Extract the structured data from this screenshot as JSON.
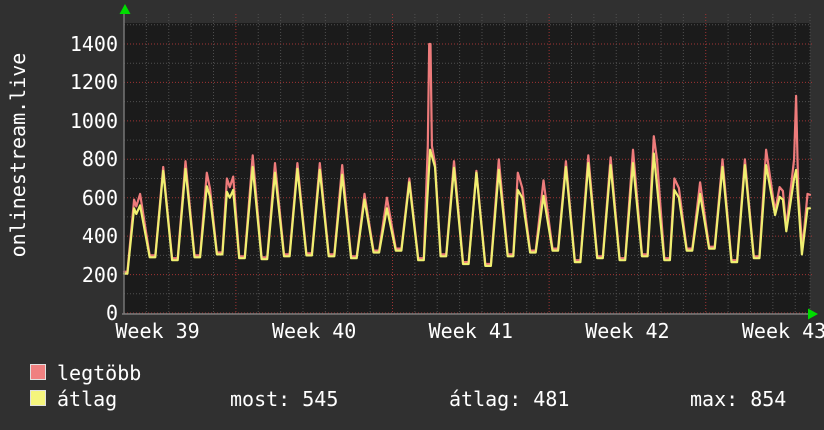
{
  "vertical_title": "onlinestream.live",
  "colors": {
    "outer_bg": "#303030",
    "plot_bg": "#1b1b1b",
    "grid_minor": "#4f4f4f",
    "grid_major": "#a03434",
    "axis": "#7a7a7a",
    "arrow": "#00dd00",
    "text": "#ffffff"
  },
  "chart_data": {
    "type": "line",
    "title": "onlinestream.live",
    "x_axis": {
      "unit": "days",
      "min": 0,
      "max": 30.66,
      "week_boundaries": [
        5,
        12,
        19,
        26
      ],
      "labels": [
        {
          "text": "Week 39",
          "day": 1.5
        },
        {
          "text": "Week 40",
          "day": 8.5
        },
        {
          "text": "Week 41",
          "day": 15.5
        },
        {
          "text": "Week 42",
          "day": 22.5
        },
        {
          "text": "Week 43",
          "day": 29.5
        }
      ]
    },
    "y_axis": {
      "min": 0,
      "max": 1509,
      "minor_step": 100,
      "major_step": 200,
      "ticks": [
        0,
        200,
        400,
        600,
        800,
        1000,
        1200,
        1400
      ]
    },
    "grid": {
      "on": true,
      "legend_position": "bottom-left"
    },
    "series": [
      {
        "name": "legtöbb",
        "color": "#ee7b7b",
        "points": [
          [
            0,
            215
          ],
          [
            0.15,
            215
          ],
          [
            0.45,
            590
          ],
          [
            0.55,
            555
          ],
          [
            0.72,
            620
          ],
          [
            1.15,
            300
          ],
          [
            1.4,
            300
          ],
          [
            1.75,
            760
          ],
          [
            2.15,
            285
          ],
          [
            2.4,
            285
          ],
          [
            2.75,
            790
          ],
          [
            3.15,
            300
          ],
          [
            3.4,
            300
          ],
          [
            3.7,
            730
          ],
          [
            3.85,
            645
          ],
          [
            4.15,
            315
          ],
          [
            4.4,
            315
          ],
          [
            4.6,
            700
          ],
          [
            4.73,
            655
          ],
          [
            4.88,
            710
          ],
          [
            5.15,
            295
          ],
          [
            5.4,
            295
          ],
          [
            5.75,
            820
          ],
          [
            6.15,
            290
          ],
          [
            6.4,
            290
          ],
          [
            6.75,
            780
          ],
          [
            7.15,
            305
          ],
          [
            7.4,
            305
          ],
          [
            7.75,
            780
          ],
          [
            8.15,
            310
          ],
          [
            8.4,
            310
          ],
          [
            8.75,
            780
          ],
          [
            9.15,
            305
          ],
          [
            9.4,
            305
          ],
          [
            9.75,
            770
          ],
          [
            10.15,
            295
          ],
          [
            10.4,
            295
          ],
          [
            10.75,
            620
          ],
          [
            11.15,
            325
          ],
          [
            11.4,
            325
          ],
          [
            11.75,
            600
          ],
          [
            12.15,
            335
          ],
          [
            12.4,
            335
          ],
          [
            12.75,
            700
          ],
          [
            13.15,
            285
          ],
          [
            13.4,
            285
          ],
          [
            13.58,
            870
          ],
          [
            13.64,
            1400
          ],
          [
            13.7,
            1400
          ],
          [
            13.76,
            870
          ],
          [
            13.9,
            780
          ],
          [
            14.15,
            305
          ],
          [
            14.4,
            305
          ],
          [
            14.75,
            790
          ],
          [
            15.15,
            265
          ],
          [
            15.4,
            265
          ],
          [
            15.75,
            740
          ],
          [
            16.15,
            255
          ],
          [
            16.4,
            255
          ],
          [
            16.75,
            800
          ],
          [
            17.15,
            305
          ],
          [
            17.4,
            305
          ],
          [
            17.6,
            730
          ],
          [
            17.8,
            650
          ],
          [
            18.15,
            325
          ],
          [
            18.4,
            325
          ],
          [
            18.75,
            690
          ],
          [
            19.15,
            335
          ],
          [
            19.4,
            335
          ],
          [
            19.75,
            790
          ],
          [
            20.15,
            275
          ],
          [
            20.4,
            275
          ],
          [
            20.75,
            820
          ],
          [
            21.15,
            295
          ],
          [
            21.4,
            295
          ],
          [
            21.75,
            810
          ],
          [
            22.15,
            285
          ],
          [
            22.4,
            285
          ],
          [
            22.75,
            850
          ],
          [
            23.15,
            305
          ],
          [
            23.4,
            305
          ],
          [
            23.68,
            920
          ],
          [
            23.82,
            800
          ],
          [
            24.15,
            285
          ],
          [
            24.4,
            285
          ],
          [
            24.6,
            700
          ],
          [
            24.8,
            650
          ],
          [
            25.15,
            335
          ],
          [
            25.4,
            335
          ],
          [
            25.75,
            680
          ],
          [
            26.15,
            345
          ],
          [
            26.4,
            345
          ],
          [
            26.75,
            800
          ],
          [
            27.15,
            275
          ],
          [
            27.4,
            275
          ],
          [
            27.75,
            800
          ],
          [
            28.15,
            295
          ],
          [
            28.4,
            295
          ],
          [
            28.7,
            850
          ],
          [
            29.1,
            530
          ],
          [
            29.3,
            655
          ],
          [
            29.45,
            635
          ],
          [
            29.6,
            445
          ],
          [
            29.95,
            800
          ],
          [
            30.04,
            1130
          ],
          [
            30.1,
            800
          ],
          [
            30.14,
            620
          ],
          [
            30.32,
            335
          ],
          [
            30.55,
            620
          ],
          [
            30.66,
            615
          ]
        ]
      },
      {
        "name": "átlag",
        "color": "#efef70",
        "points": [
          [
            0,
            205
          ],
          [
            0.15,
            205
          ],
          [
            0.45,
            545
          ],
          [
            0.55,
            515
          ],
          [
            0.72,
            560
          ],
          [
            1.15,
            290
          ],
          [
            1.4,
            290
          ],
          [
            1.75,
            740
          ],
          [
            2.15,
            275
          ],
          [
            2.4,
            275
          ],
          [
            2.75,
            750
          ],
          [
            3.15,
            290
          ],
          [
            3.4,
            290
          ],
          [
            3.7,
            660
          ],
          [
            3.85,
            605
          ],
          [
            4.15,
            305
          ],
          [
            4.4,
            305
          ],
          [
            4.6,
            630
          ],
          [
            4.73,
            600
          ],
          [
            4.88,
            640
          ],
          [
            5.15,
            285
          ],
          [
            5.4,
            285
          ],
          [
            5.75,
            760
          ],
          [
            6.15,
            280
          ],
          [
            6.4,
            280
          ],
          [
            6.75,
            730
          ],
          [
            7.15,
            295
          ],
          [
            7.4,
            295
          ],
          [
            7.75,
            750
          ],
          [
            8.15,
            300
          ],
          [
            8.4,
            300
          ],
          [
            8.75,
            745
          ],
          [
            9.15,
            295
          ],
          [
            9.4,
            295
          ],
          [
            9.75,
            720
          ],
          [
            10.15,
            285
          ],
          [
            10.4,
            285
          ],
          [
            10.75,
            590
          ],
          [
            11.15,
            315
          ],
          [
            11.4,
            315
          ],
          [
            11.75,
            545
          ],
          [
            12.15,
            325
          ],
          [
            12.4,
            325
          ],
          [
            12.75,
            680
          ],
          [
            13.15,
            275
          ],
          [
            13.4,
            275
          ],
          [
            13.68,
            850
          ],
          [
            13.9,
            760
          ],
          [
            14.15,
            295
          ],
          [
            14.4,
            295
          ],
          [
            14.75,
            755
          ],
          [
            15.15,
            255
          ],
          [
            15.4,
            255
          ],
          [
            15.75,
            730
          ],
          [
            16.15,
            245
          ],
          [
            16.4,
            245
          ],
          [
            16.75,
            745
          ],
          [
            17.15,
            295
          ],
          [
            17.4,
            295
          ],
          [
            17.6,
            640
          ],
          [
            17.8,
            600
          ],
          [
            18.15,
            315
          ],
          [
            18.4,
            315
          ],
          [
            18.75,
            610
          ],
          [
            19.15,
            325
          ],
          [
            19.4,
            325
          ],
          [
            19.75,
            760
          ],
          [
            20.15,
            265
          ],
          [
            20.4,
            265
          ],
          [
            20.75,
            780
          ],
          [
            21.15,
            285
          ],
          [
            21.4,
            285
          ],
          [
            21.75,
            770
          ],
          [
            22.15,
            275
          ],
          [
            22.4,
            275
          ],
          [
            22.75,
            780
          ],
          [
            23.15,
            295
          ],
          [
            23.4,
            295
          ],
          [
            23.68,
            830
          ],
          [
            24.15,
            275
          ],
          [
            24.4,
            275
          ],
          [
            24.6,
            640
          ],
          [
            24.8,
            600
          ],
          [
            25.15,
            325
          ],
          [
            25.4,
            325
          ],
          [
            25.75,
            620
          ],
          [
            26.15,
            335
          ],
          [
            26.4,
            335
          ],
          [
            26.75,
            760
          ],
          [
            27.15,
            265
          ],
          [
            27.4,
            265
          ],
          [
            27.75,
            770
          ],
          [
            28.15,
            285
          ],
          [
            28.4,
            285
          ],
          [
            28.7,
            770
          ],
          [
            29.1,
            510
          ],
          [
            29.3,
            605
          ],
          [
            29.45,
            590
          ],
          [
            29.6,
            425
          ],
          [
            29.95,
            700
          ],
          [
            30.04,
            745
          ],
          [
            30.3,
            305
          ],
          [
            30.55,
            545
          ],
          [
            30.66,
            545
          ]
        ]
      }
    ]
  },
  "legend": {
    "items": [
      {
        "label": "legtöbb",
        "swatch": "#f08080"
      },
      {
        "label": "átlag",
        "swatch": "#f5f57d"
      }
    ]
  },
  "stats": {
    "most": "most: 545",
    "atlag": "átlag: 481",
    "max": "max: 854"
  }
}
